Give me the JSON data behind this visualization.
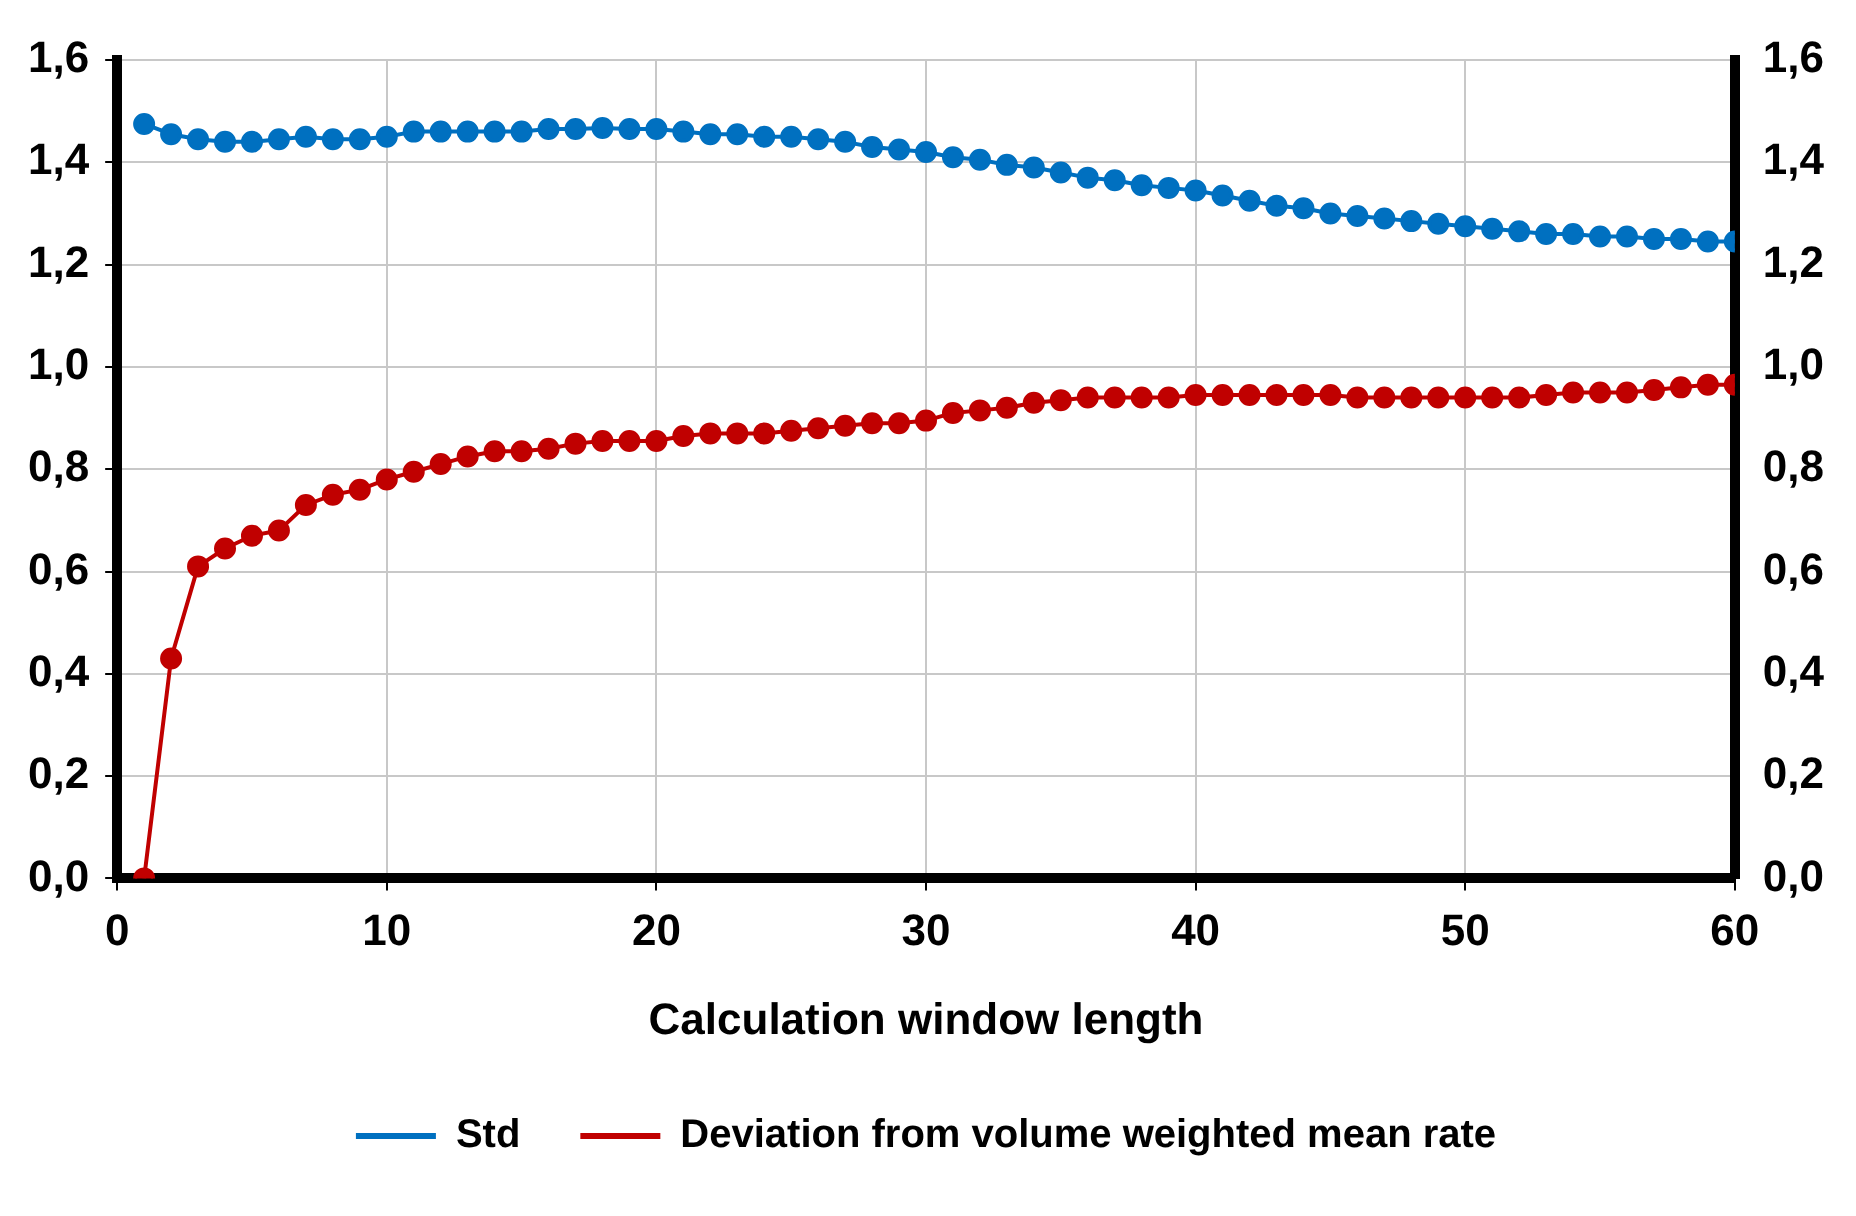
{
  "chart_data": {
    "type": "line",
    "xlabel": "Calculation window length",
    "x": [
      1,
      2,
      3,
      4,
      5,
      6,
      7,
      8,
      9,
      10,
      11,
      12,
      13,
      14,
      15,
      16,
      17,
      18,
      19,
      20,
      21,
      22,
      23,
      24,
      25,
      26,
      27,
      28,
      29,
      30,
      31,
      32,
      33,
      34,
      35,
      36,
      37,
      38,
      39,
      40,
      41,
      42,
      43,
      44,
      45,
      46,
      47,
      48,
      49,
      50,
      51,
      52,
      53,
      54,
      55,
      56,
      57,
      58,
      59,
      60
    ],
    "series": [
      {
        "name": "Std",
        "color": "#0070c0",
        "values": [
          1.475,
          1.455,
          1.445,
          1.44,
          1.44,
          1.445,
          1.45,
          1.445,
          1.445,
          1.45,
          1.46,
          1.46,
          1.46,
          1.46,
          1.46,
          1.465,
          1.465,
          1.467,
          1.465,
          1.465,
          1.46,
          1.455,
          1.455,
          1.45,
          1.45,
          1.445,
          1.44,
          1.43,
          1.425,
          1.42,
          1.41,
          1.405,
          1.395,
          1.39,
          1.38,
          1.37,
          1.365,
          1.355,
          1.35,
          1.345,
          1.335,
          1.325,
          1.315,
          1.31,
          1.3,
          1.295,
          1.29,
          1.285,
          1.28,
          1.275,
          1.27,
          1.265,
          1.26,
          1.26,
          1.255,
          1.255,
          1.25,
          1.25,
          1.245,
          1.245
        ]
      },
      {
        "name": "Deviation from volume weighted mean rate",
        "color": "#c00000",
        "values": [
          0.0,
          0.43,
          0.61,
          0.645,
          0.67,
          0.68,
          0.73,
          0.75,
          0.76,
          0.78,
          0.795,
          0.81,
          0.825,
          0.835,
          0.835,
          0.84,
          0.85,
          0.855,
          0.855,
          0.855,
          0.865,
          0.87,
          0.87,
          0.87,
          0.875,
          0.88,
          0.885,
          0.89,
          0.89,
          0.895,
          0.91,
          0.915,
          0.92,
          0.93,
          0.935,
          0.94,
          0.94,
          0.94,
          0.94,
          0.945,
          0.945,
          0.945,
          0.945,
          0.945,
          0.945,
          0.94,
          0.94,
          0.94,
          0.94,
          0.94,
          0.94,
          0.94,
          0.945,
          0.95,
          0.95,
          0.95,
          0.955,
          0.96,
          0.965,
          0.965
        ]
      }
    ],
    "xlim": [
      0,
      60
    ],
    "xticks": [
      0,
      10,
      20,
      30,
      40,
      50,
      60
    ],
    "ylim": [
      0,
      1.6
    ],
    "yticks": [
      {
        "value": 0,
        "label": "0,0"
      },
      {
        "value": 0.2,
        "label": "0,2"
      },
      {
        "value": 0.4,
        "label": "0,4"
      },
      {
        "value": 0.6,
        "label": "0,6"
      },
      {
        "value": 0.8,
        "label": "0,8"
      },
      {
        "value": 1.0,
        "label": "1,0"
      },
      {
        "value": 1.2,
        "label": "1,2"
      },
      {
        "value": 1.4,
        "label": "1,4"
      },
      {
        "value": 1.6,
        "label": "1,6"
      }
    ],
    "y2lim": [
      0,
      1.6
    ],
    "y2ticks": [
      {
        "value": 0,
        "label": "0,0"
      },
      {
        "value": 0.2,
        "label": "0,2"
      },
      {
        "value": 0.4,
        "label": "0,4"
      },
      {
        "value": 0.6,
        "label": "0,6"
      },
      {
        "value": 0.8,
        "label": "0,8"
      },
      {
        "value": 1.0,
        "label": "1,0"
      },
      {
        "value": 1.2,
        "label": "1,2"
      },
      {
        "value": 1.4,
        "label": "1,4"
      },
      {
        "value": 1.6,
        "label": "1,6"
      }
    ],
    "grid": true,
    "legend": "bottom",
    "marker": "circle",
    "line_style": "solid"
  }
}
